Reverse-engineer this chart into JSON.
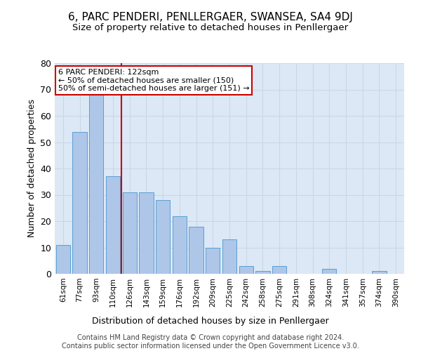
{
  "title": "6, PARC PENDERI, PENLLERGAER, SWANSEA, SA4 9DJ",
  "subtitle": "Size of property relative to detached houses in Penllergaer",
  "xlabel": "Distribution of detached houses by size in Penllergaer",
  "ylabel": "Number of detached properties",
  "categories": [
    "61sqm",
    "77sqm",
    "93sqm",
    "110sqm",
    "126sqm",
    "143sqm",
    "159sqm",
    "176sqm",
    "192sqm",
    "209sqm",
    "225sqm",
    "242sqm",
    "258sqm",
    "275sqm",
    "291sqm",
    "308sqm",
    "324sqm",
    "341sqm",
    "357sqm",
    "374sqm",
    "390sqm"
  ],
  "values": [
    11,
    54,
    68,
    37,
    31,
    31,
    28,
    22,
    18,
    10,
    13,
    3,
    1,
    3,
    0,
    0,
    2,
    0,
    0,
    1,
    0
  ],
  "bar_color": "#aec6e8",
  "bar_edge_color": "#5a9fd4",
  "grid_color": "#c8d8e8",
  "background_color": "#dce8f5",
  "vline_index": 3.5,
  "vline_color": "#cc0000",
  "annotation_text": "6 PARC PENDERI: 122sqm\n← 50% of detached houses are smaller (150)\n50% of semi-detached houses are larger (151) →",
  "annotation_box_color": "#ffffff",
  "annotation_box_edge": "#cc0000",
  "ylim": [
    0,
    80
  ],
  "yticks": [
    0,
    10,
    20,
    30,
    40,
    50,
    60,
    70,
    80
  ],
  "footer1": "Contains HM Land Registry data © Crown copyright and database right 2024.",
  "footer2": "Contains public sector information licensed under the Open Government Licence v3.0.",
  "title_fontsize": 11,
  "subtitle_fontsize": 9.5,
  "footer_fontsize": 7
}
